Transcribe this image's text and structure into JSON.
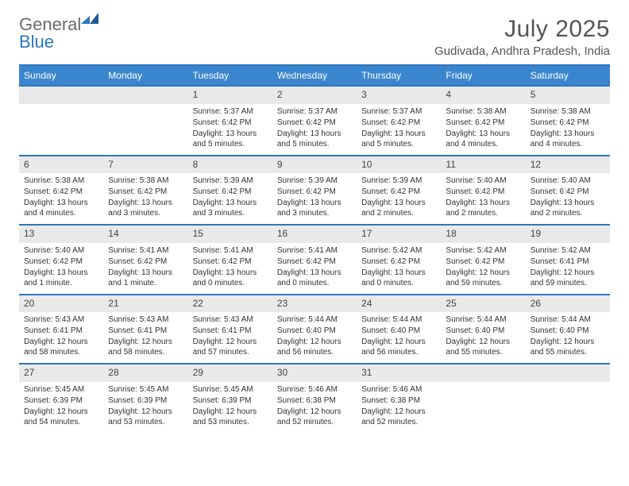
{
  "logo": {
    "word1": "General",
    "word2": "Blue",
    "text_color": "#6a6a6a",
    "accent_color": "#2f76bd"
  },
  "title": "July 2025",
  "location": "Gudivada, Andhra Pradesh, India",
  "header_bg": "#3a86ce",
  "border_color": "#2f76bd",
  "daynum_bg": "#e9e9e9",
  "dayNames": [
    "Sunday",
    "Monday",
    "Tuesday",
    "Wednesday",
    "Thursday",
    "Friday",
    "Saturday"
  ],
  "weeks": [
    [
      null,
      null,
      {
        "n": "1",
        "sr": "5:37 AM",
        "ss": "6:42 PM",
        "dl": "13 hours and 5 minutes."
      },
      {
        "n": "2",
        "sr": "5:37 AM",
        "ss": "6:42 PM",
        "dl": "13 hours and 5 minutes."
      },
      {
        "n": "3",
        "sr": "5:37 AM",
        "ss": "6:42 PM",
        "dl": "13 hours and 5 minutes."
      },
      {
        "n": "4",
        "sr": "5:38 AM",
        "ss": "6:42 PM",
        "dl": "13 hours and 4 minutes."
      },
      {
        "n": "5",
        "sr": "5:38 AM",
        "ss": "6:42 PM",
        "dl": "13 hours and 4 minutes."
      }
    ],
    [
      {
        "n": "6",
        "sr": "5:38 AM",
        "ss": "6:42 PM",
        "dl": "13 hours and 4 minutes."
      },
      {
        "n": "7",
        "sr": "5:38 AM",
        "ss": "6:42 PM",
        "dl": "13 hours and 3 minutes."
      },
      {
        "n": "8",
        "sr": "5:39 AM",
        "ss": "6:42 PM",
        "dl": "13 hours and 3 minutes."
      },
      {
        "n": "9",
        "sr": "5:39 AM",
        "ss": "6:42 PM",
        "dl": "13 hours and 3 minutes."
      },
      {
        "n": "10",
        "sr": "5:39 AM",
        "ss": "6:42 PM",
        "dl": "13 hours and 2 minutes."
      },
      {
        "n": "11",
        "sr": "5:40 AM",
        "ss": "6:42 PM",
        "dl": "13 hours and 2 minutes."
      },
      {
        "n": "12",
        "sr": "5:40 AM",
        "ss": "6:42 PM",
        "dl": "13 hours and 2 minutes."
      }
    ],
    [
      {
        "n": "13",
        "sr": "5:40 AM",
        "ss": "6:42 PM",
        "dl": "13 hours and 1 minute."
      },
      {
        "n": "14",
        "sr": "5:41 AM",
        "ss": "6:42 PM",
        "dl": "13 hours and 1 minute."
      },
      {
        "n": "15",
        "sr": "5:41 AM",
        "ss": "6:42 PM",
        "dl": "13 hours and 0 minutes."
      },
      {
        "n": "16",
        "sr": "5:41 AM",
        "ss": "6:42 PM",
        "dl": "13 hours and 0 minutes."
      },
      {
        "n": "17",
        "sr": "5:42 AM",
        "ss": "6:42 PM",
        "dl": "13 hours and 0 minutes."
      },
      {
        "n": "18",
        "sr": "5:42 AM",
        "ss": "6:42 PM",
        "dl": "12 hours and 59 minutes."
      },
      {
        "n": "19",
        "sr": "5:42 AM",
        "ss": "6:41 PM",
        "dl": "12 hours and 59 minutes."
      }
    ],
    [
      {
        "n": "20",
        "sr": "5:43 AM",
        "ss": "6:41 PM",
        "dl": "12 hours and 58 minutes."
      },
      {
        "n": "21",
        "sr": "5:43 AM",
        "ss": "6:41 PM",
        "dl": "12 hours and 58 minutes."
      },
      {
        "n": "22",
        "sr": "5:43 AM",
        "ss": "6:41 PM",
        "dl": "12 hours and 57 minutes."
      },
      {
        "n": "23",
        "sr": "5:44 AM",
        "ss": "6:40 PM",
        "dl": "12 hours and 56 minutes."
      },
      {
        "n": "24",
        "sr": "5:44 AM",
        "ss": "6:40 PM",
        "dl": "12 hours and 56 minutes."
      },
      {
        "n": "25",
        "sr": "5:44 AM",
        "ss": "6:40 PM",
        "dl": "12 hours and 55 minutes."
      },
      {
        "n": "26",
        "sr": "5:44 AM",
        "ss": "6:40 PM",
        "dl": "12 hours and 55 minutes."
      }
    ],
    [
      {
        "n": "27",
        "sr": "5:45 AM",
        "ss": "6:39 PM",
        "dl": "12 hours and 54 minutes."
      },
      {
        "n": "28",
        "sr": "5:45 AM",
        "ss": "6:39 PM",
        "dl": "12 hours and 53 minutes."
      },
      {
        "n": "29",
        "sr": "5:45 AM",
        "ss": "6:39 PM",
        "dl": "12 hours and 53 minutes."
      },
      {
        "n": "30",
        "sr": "5:46 AM",
        "ss": "6:38 PM",
        "dl": "12 hours and 52 minutes."
      },
      {
        "n": "31",
        "sr": "5:46 AM",
        "ss": "6:38 PM",
        "dl": "12 hours and 52 minutes."
      },
      null,
      null
    ]
  ],
  "labels": {
    "sunrise": "Sunrise:",
    "sunset": "Sunset:",
    "daylight": "Daylight:"
  }
}
